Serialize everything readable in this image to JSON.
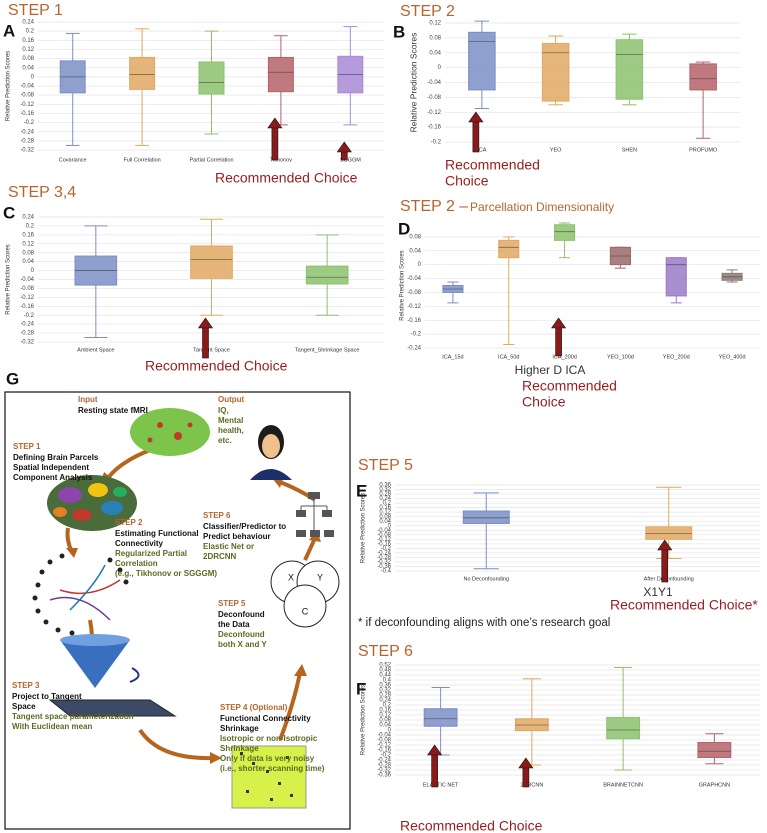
{
  "chart_data": [
    {
      "type": "box",
      "title": "STEP 1",
      "panel": "A",
      "ylabel": "Relative Prediction Scores",
      "categories": [
        "Covariance",
        "Full Correlation",
        "Partial Correlation",
        "Tikhonov",
        "SGGGM"
      ],
      "boxes": [
        {
          "min": -0.3,
          "q1": -0.07,
          "median": 0,
          "q3": 0.07,
          "max": 0.19
        },
        {
          "min": -0.3,
          "q1": -0.055,
          "median": 0.01,
          "q3": 0.085,
          "max": 0.21
        },
        {
          "min": -0.25,
          "q1": -0.075,
          "median": -0.025,
          "q3": 0.065,
          "max": 0.2
        },
        {
          "min": -0.21,
          "q1": -0.065,
          "median": 0.02,
          "q3": 0.085,
          "max": 0.18
        },
        {
          "min": -0.21,
          "q1": -0.07,
          "median": 0.01,
          "q3": 0.09,
          "max": 0.22
        }
      ],
      "colors": [
        "#7b8fc7",
        "#e0a862",
        "#8cc26d",
        "#b56368",
        "#a98ad6"
      ],
      "ylim": [
        -0.32,
        0.24
      ],
      "yticks": [
        -0.32,
        -0.28,
        -0.24,
        -0.2,
        -0.16,
        -0.12,
        -0.08,
        -0.04,
        0,
        0.04,
        0.08,
        0.12,
        0.16,
        0.2,
        0.24
      ],
      "grid": true,
      "annotation": [
        "Recommended Choice"
      ]
    },
    {
      "type": "box",
      "title": "STEP 2",
      "panel": "B",
      "ylabel": "Relative Prediction Scores",
      "categories": [
        "ICA",
        "YEO",
        "SHEN",
        "PROFUMO"
      ],
      "boxes": [
        {
          "min": -0.11,
          "q1": -0.06,
          "median": 0.07,
          "q3": 0.095,
          "max": 0.125
        },
        {
          "min": -0.1,
          "q1": -0.09,
          "median": 0.04,
          "q3": 0.065,
          "max": 0.085
        },
        {
          "min": -0.1,
          "q1": -0.085,
          "median": 0.035,
          "q3": 0.075,
          "max": 0.09
        },
        {
          "min": -0.19,
          "q1": -0.06,
          "median": -0.03,
          "q3": 0.01,
          "max": 0.015
        }
      ],
      "colors": [
        "#7b8fc7",
        "#e0a862",
        "#8cc26d",
        "#b56368"
      ],
      "ylim": [
        -0.2,
        0.12
      ],
      "yticks": [
        -0.2,
        -0.16,
        -0.12,
        -0.08,
        -0.04,
        0,
        0.04,
        0.08,
        0.12
      ],
      "grid": true,
      "annotation": [
        "Recommended",
        "Choice"
      ]
    },
    {
      "type": "box",
      "title": "STEP 3,4",
      "panel": "C",
      "ylabel": "Relative Prediction Scores",
      "categories": [
        "Ambient Space",
        "Tangent Space",
        "Tangent_Shrinkage Space"
      ],
      "boxes": [
        {
          "min": -0.3,
          "q1": -0.065,
          "median": 0,
          "q3": 0.065,
          "max": 0.2
        },
        {
          "min": -0.2,
          "q1": -0.035,
          "median": 0.05,
          "q3": 0.11,
          "max": 0.23
        },
        {
          "min": -0.2,
          "q1": -0.06,
          "median": -0.03,
          "q3": 0.02,
          "max": 0.16
        }
      ],
      "colors": [
        "#7b8fc7",
        "#e0a862",
        "#8cc26d"
      ],
      "ylim": [
        -0.32,
        0.24
      ],
      "yticks": [
        -0.32,
        -0.28,
        -0.24,
        -0.2,
        -0.16,
        -0.12,
        -0.08,
        -0.04,
        0,
        0.04,
        0.08,
        0.12,
        0.16,
        0.2,
        0.24
      ],
      "grid": true,
      "annotation": [
        "Recommended Choice"
      ]
    },
    {
      "type": "box",
      "title": "STEP 2 –",
      "subtitle": "Parcellation Dimensionality",
      "panel": "D",
      "ylabel": "Relative Prediction Scores",
      "xlabel": "Higher D ICA",
      "categories": [
        "ICA_15d",
        "ICA_50d",
        "ICA_200d",
        "YEO_100d",
        "YEO_200d",
        "YEO_400d"
      ],
      "boxes": [
        {
          "min": -0.11,
          "q1": -0.08,
          "median": -0.07,
          "q3": -0.06,
          "max": -0.05
        },
        {
          "min": -0.23,
          "q1": 0.02,
          "median": 0.05,
          "q3": 0.07,
          "max": 0.08
        },
        {
          "min": 0.02,
          "q1": 0.07,
          "median": 0.095,
          "q3": 0.115,
          "max": 0.12
        },
        {
          "min": -0.01,
          "q1": 0,
          "median": 0.025,
          "q3": 0.05,
          "max": 0.05
        },
        {
          "min": -0.11,
          "q1": -0.09,
          "median": 0,
          "q3": 0.02,
          "max": 0.02
        },
        {
          "min": -0.05,
          "q1": -0.045,
          "median": -0.035,
          "q3": -0.025,
          "max": -0.015
        }
      ],
      "colors": [
        "#7b8fc7",
        "#e0a862",
        "#8cc26d",
        "#9a6868",
        "#9a7ac8",
        "#8c7b76"
      ],
      "ylim": [
        -0.24,
        0.12
      ],
      "yticks": [
        -0.24,
        -0.2,
        -0.16,
        -0.12,
        -0.08,
        -0.04,
        0,
        0.04,
        0.08
      ],
      "grid": true,
      "annotation": [
        "Recommended",
        "Choice"
      ]
    },
    {
      "type": "box",
      "title": "STEP 5",
      "panel": "E",
      "ylabel": "Relative Prediction Scores",
      "xlabel": "X1Y1",
      "categories": [
        "No Deconfounding",
        "After Deconfounding"
      ],
      "boxes": [
        {
          "min": -0.38,
          "q1": 0.02,
          "median": 0.07,
          "q3": 0.13,
          "max": 0.29
        },
        {
          "min": -0.29,
          "q1": -0.12,
          "median": -0.07,
          "q3": -0.01,
          "max": 0.34
        }
      ],
      "colors": [
        "#7b8fc7",
        "#e0a862"
      ],
      "ylim": [
        -0.4,
        0.36
      ],
      "yticks": [
        -0.4,
        -0.36,
        -0.32,
        -0.28,
        -0.24,
        -0.2,
        -0.16,
        -0.12,
        -0.08,
        -0.04,
        0,
        0.04,
        0.08,
        0.12,
        0.16,
        0.2,
        0.24,
        0.28,
        0.32,
        0.36
      ],
      "grid": true,
      "annotation": [
        "Recommended Choice*"
      ],
      "footnote": "* if deconfounding aligns with one’s research goal"
    },
    {
      "type": "box",
      "title": "STEP 6",
      "panel": "F",
      "ylabel": "Relative Prediction Scores",
      "categories": [
        "ELASTIC NET",
        "2DRCNN",
        "BRAINNETCNN",
        "GRAPHCNN"
      ],
      "boxes": [
        {
          "min": -0.2,
          "q1": 0.03,
          "median": 0.09,
          "q3": 0.17,
          "max": 0.34
        },
        {
          "min": -0.28,
          "q1": -0.005,
          "median": 0.04,
          "q3": 0.09,
          "max": 0.41
        },
        {
          "min": -0.32,
          "q1": -0.07,
          "median": 0,
          "q3": 0.1,
          "max": 0.5
        },
        {
          "min": -0.27,
          "q1": -0.22,
          "median": -0.17,
          "q3": -0.1,
          "max": -0.03
        }
      ],
      "colors": [
        "#7b8fc7",
        "#e0a862",
        "#8cc26d",
        "#b56368"
      ],
      "ylim": [
        -0.36,
        0.52
      ],
      "yticks": [
        -0.36,
        -0.32,
        -0.28,
        -0.24,
        -0.2,
        -0.16,
        -0.12,
        -0.08,
        -0.04,
        0,
        0.04,
        0.08,
        0.12,
        0.16,
        0.2,
        0.24,
        0.28,
        0.32,
        0.36,
        0.4,
        0.44,
        0.48,
        0.52
      ],
      "grid": true,
      "annotation": [
        "Recommended Choice"
      ]
    }
  ],
  "diagram": {
    "panel": "G",
    "blocks": [
      {
        "heading": "Input",
        "bold": [
          "Resting state fMRI"
        ]
      },
      {
        "heading": "STEP 1",
        "bold": [
          "Defining Brain Parcels",
          "Spatial Independent",
          "Component Analysis"
        ]
      },
      {
        "heading": "STEP 2",
        "bold": [
          "Estimating Functional",
          "Connectivity"
        ],
        "detail": [
          "Regularized Partial",
          "Correlation",
          "(e.g., Tikhonov or SGGGM)"
        ]
      },
      {
        "heading": "STEP 3",
        "bold": [
          "Project to Tangent",
          "Space"
        ],
        "detail": [
          "Tangent space parameterization",
          "With Euclidean mean"
        ]
      },
      {
        "heading": "STEP 4 (Optional)",
        "bold": [
          "Functional Connectivity",
          "Shrinkage"
        ],
        "detail": [
          "Isotropic or non-Isotropic",
          "Shrinkage",
          "Only if data is very noisy",
          "(i.e., shorter scanning time)"
        ]
      },
      {
        "heading": "STEP 5",
        "bold": [
          "Deconfound",
          "the Data"
        ],
        "detail": [
          "Deconfound",
          "both X and Y"
        ]
      },
      {
        "heading": "STEP 6",
        "bold": [
          "Classifier/Predictor to",
          "Predict behaviour"
        ],
        "detail": [
          "Elastic Net or",
          "2DRCNN"
        ]
      },
      {
        "heading": "Output",
        "detail": [
          "IQ,",
          "Mental",
          "health,",
          "etc."
        ]
      }
    ],
    "venn": [
      "X",
      "Y",
      "C"
    ]
  }
}
